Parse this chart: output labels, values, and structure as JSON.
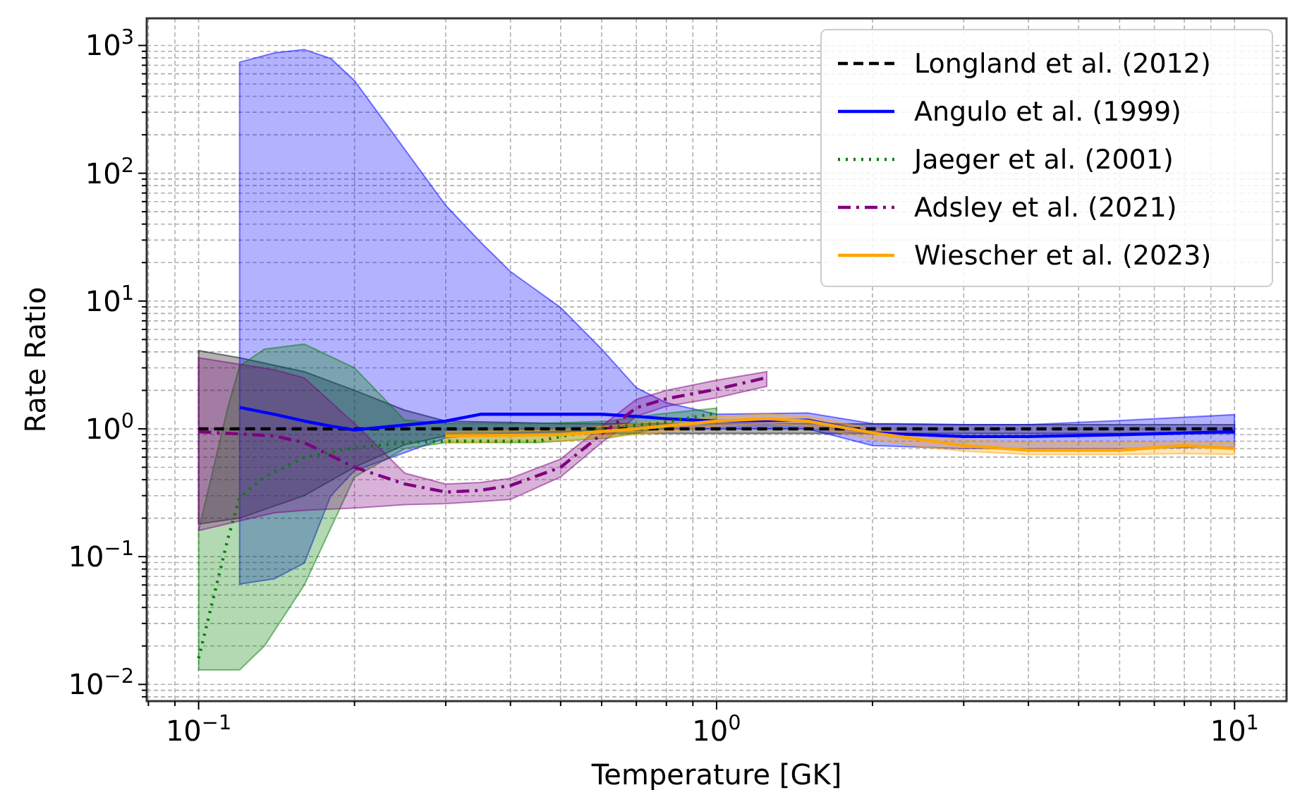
{
  "chart_data": {
    "type": "line",
    "xlabel": "Temperature [GK]",
    "ylabel": "Rate Ratio",
    "log": "xy",
    "grid": true,
    "legend": "top right",
    "xlim": [
      0.0794,
      12.6
    ],
    "ylim": [
      0.0074,
      1630
    ],
    "xticks": [
      {
        "value": 0.08,
        "label": null
      },
      {
        "value": 0.09,
        "label": null
      },
      {
        "value": 0.1,
        "label": "10$^{−1}$"
      },
      {
        "value": 0.2,
        "label": null
      },
      {
        "value": 0.3,
        "label": null
      },
      {
        "value": 0.4,
        "label": null
      },
      {
        "value": 0.5,
        "label": null
      },
      {
        "value": 0.6,
        "label": null
      },
      {
        "value": 0.7,
        "label": null
      },
      {
        "value": 0.8,
        "label": null
      },
      {
        "value": 0.9,
        "label": null
      },
      {
        "value": 1,
        "label": "10$^{0}$"
      },
      {
        "value": 2,
        "label": null
      },
      {
        "value": 3,
        "label": null
      },
      {
        "value": 4,
        "label": null
      },
      {
        "value": 5,
        "label": null
      },
      {
        "value": 6,
        "label": null
      },
      {
        "value": 7,
        "label": null
      },
      {
        "value": 8,
        "label": null
      },
      {
        "value": 9,
        "label": null
      },
      {
        "value": 10,
        "label": "10$^{1}$"
      }
    ],
    "yticks": [
      {
        "value": 0.008,
        "label": null
      },
      {
        "value": 0.009,
        "label": null
      },
      {
        "value": 0.01,
        "label": "10$^{−2}$"
      },
      {
        "value": 0.02,
        "label": null
      },
      {
        "value": 0.03,
        "label": null
      },
      {
        "value": 0.04,
        "label": null
      },
      {
        "value": 0.05,
        "label": null
      },
      {
        "value": 0.06,
        "label": null
      },
      {
        "value": 0.07,
        "label": null
      },
      {
        "value": 0.08,
        "label": null
      },
      {
        "value": 0.09,
        "label": null
      },
      {
        "value": 0.1,
        "label": "10$^{−1}$"
      },
      {
        "value": 0.2,
        "label": null
      },
      {
        "value": 0.3,
        "label": null
      },
      {
        "value": 0.4,
        "label": null
      },
      {
        "value": 0.5,
        "label": null
      },
      {
        "value": 0.6,
        "label": null
      },
      {
        "value": 0.7,
        "label": null
      },
      {
        "value": 0.8,
        "label": null
      },
      {
        "value": 0.9,
        "label": null
      },
      {
        "value": 1,
        "label": "10$^{0}$"
      },
      {
        "value": 2,
        "label": null
      },
      {
        "value": 3,
        "label": null
      },
      {
        "value": 4,
        "label": null
      },
      {
        "value": 5,
        "label": null
      },
      {
        "value": 6,
        "label": null
      },
      {
        "value": 7,
        "label": null
      },
      {
        "value": 8,
        "label": null
      },
      {
        "value": 9,
        "label": null
      },
      {
        "value": 10,
        "label": "10$^{1}$"
      },
      {
        "value": 20,
        "label": null
      },
      {
        "value": 30,
        "label": null
      },
      {
        "value": 40,
        "label": null
      },
      {
        "value": 50,
        "label": null
      },
      {
        "value": 60,
        "label": null
      },
      {
        "value": 70,
        "label": null
      },
      {
        "value": 80,
        "label": null
      },
      {
        "value": 90,
        "label": null
      },
      {
        "value": 100,
        "label": "10$^{2}$"
      },
      {
        "value": 200,
        "label": null
      },
      {
        "value": 300,
        "label": null
      },
      {
        "value": 400,
        "label": null
      },
      {
        "value": 500,
        "label": null
      },
      {
        "value": 600,
        "label": null
      },
      {
        "value": 700,
        "label": null
      },
      {
        "value": 800,
        "label": null
      },
      {
        "value": 900,
        "label": null
      },
      {
        "value": 1000,
        "label": "10$^{3}$"
      }
    ],
    "series": [
      {
        "name": "Longland et al. (2012)",
        "color": "#000000",
        "line_style": "dashed",
        "x": [
          0.1,
          0.12,
          0.16,
          0.2,
          0.25,
          0.3,
          0.5,
          1,
          1.5,
          3,
          10
        ],
        "values": [
          1,
          1,
          1,
          1,
          1,
          1,
          1,
          1,
          1,
          1,
          1
        ],
        "lower": [
          0.18,
          0.2,
          0.3,
          0.5,
          0.75,
          0.88,
          0.92,
          0.92,
          0.92,
          0.92,
          0.92
        ],
        "upper": [
          4.1,
          3.6,
          2.8,
          2.0,
          1.4,
          1.15,
          1.1,
          1.1,
          1.1,
          1.08,
          1.08
        ]
      },
      {
        "name": "Angulo et al. (1999)",
        "color": "#0000ff",
        "line_style": "solid",
        "x": [
          0.12,
          0.14,
          0.16,
          0.18,
          0.2,
          0.3,
          0.35,
          0.4,
          0.5,
          0.6,
          0.7,
          0.8,
          1,
          1.5,
          2,
          3,
          4,
          6,
          10
        ],
        "values": [
          1.47,
          1.3,
          1.15,
          1.05,
          0.98,
          1.15,
          1.3,
          1.3,
          1.3,
          1.3,
          1.25,
          1.2,
          1.15,
          1.17,
          0.93,
          0.87,
          0.87,
          0.9,
          0.95
        ],
        "lower": [
          0.061,
          0.067,
          0.089,
          0.3,
          0.47,
          0.85,
          0.9,
          0.92,
          0.95,
          0.97,
          0.98,
          1.0,
          1.0,
          1.0,
          0.74,
          0.7,
          0.7,
          0.7,
          0.72
        ],
        "upper": [
          740,
          875,
          930,
          790,
          530,
          56,
          29,
          17,
          8.9,
          4.2,
          2.1,
          1.6,
          1.3,
          1.33,
          1.1,
          1.08,
          1.08,
          1.16,
          1.29
        ]
      },
      {
        "name": "Jaeger et al. (2001)",
        "color": "#008000",
        "line_style": "dotted",
        "x": [
          0.1,
          0.114,
          0.12,
          0.134,
          0.16,
          0.2,
          0.25,
          0.3,
          0.45,
          0.62,
          0.77,
          1
        ],
        "values": [
          0.016,
          0.14,
          0.29,
          0.42,
          0.6,
          0.71,
          0.78,
          0.8,
          0.8,
          1.03,
          1.1,
          1.33
        ],
        "lower": [
          0.013,
          0.013,
          0.013,
          0.02,
          0.06,
          0.42,
          0.7,
          0.78,
          0.78,
          0.85,
          1.0,
          1.2
        ],
        "upper": [
          0.16,
          1.5,
          3.1,
          4.2,
          4.6,
          3.0,
          1.17,
          1.1,
          1.1,
          1.15,
          1.3,
          1.45
        ]
      },
      {
        "name": "Adsley et al. (2021)",
        "color": "#800080",
        "line_style": "dashdot",
        "x": [
          0.1,
          0.14,
          0.16,
          0.2,
          0.25,
          0.3,
          0.35,
          0.4,
          0.5,
          0.6,
          0.7,
          0.8,
          1,
          1.25
        ],
        "values": [
          0.95,
          0.88,
          0.78,
          0.5,
          0.37,
          0.32,
          0.33,
          0.36,
          0.5,
          0.91,
          1.46,
          1.72,
          2.04,
          2.52
        ],
        "lower": [
          0.16,
          0.22,
          0.23,
          0.24,
          0.255,
          0.26,
          0.27,
          0.28,
          0.42,
          0.78,
          1.25,
          1.5,
          1.75,
          2.15
        ],
        "upper": [
          3.6,
          2.9,
          2.5,
          1.1,
          0.45,
          0.37,
          0.38,
          0.41,
          0.58,
          1.05,
          1.7,
          2.0,
          2.4,
          2.8
        ]
      },
      {
        "name": "Wiescher et al. (2023)",
        "color": "#ffa500",
        "line_style": "solid",
        "x": [
          0.3,
          0.5,
          0.7,
          1,
          1.25,
          1.5,
          2,
          2.5,
          3,
          4,
          6,
          8,
          10
        ],
        "values": [
          0.88,
          0.9,
          1.0,
          1.15,
          1.2,
          1.15,
          0.93,
          0.82,
          0.74,
          0.68,
          0.68,
          0.74,
          0.7
        ],
        "lower": [
          0.78,
          0.8,
          0.9,
          1.05,
          1.1,
          1.05,
          0.83,
          0.72,
          0.67,
          0.63,
          0.63,
          0.64,
          0.63
        ],
        "upper": [
          0.95,
          0.98,
          1.1,
          1.25,
          1.3,
          1.25,
          1.0,
          0.9,
          0.82,
          0.78,
          0.78,
          0.8,
          0.78
        ]
      }
    ]
  }
}
